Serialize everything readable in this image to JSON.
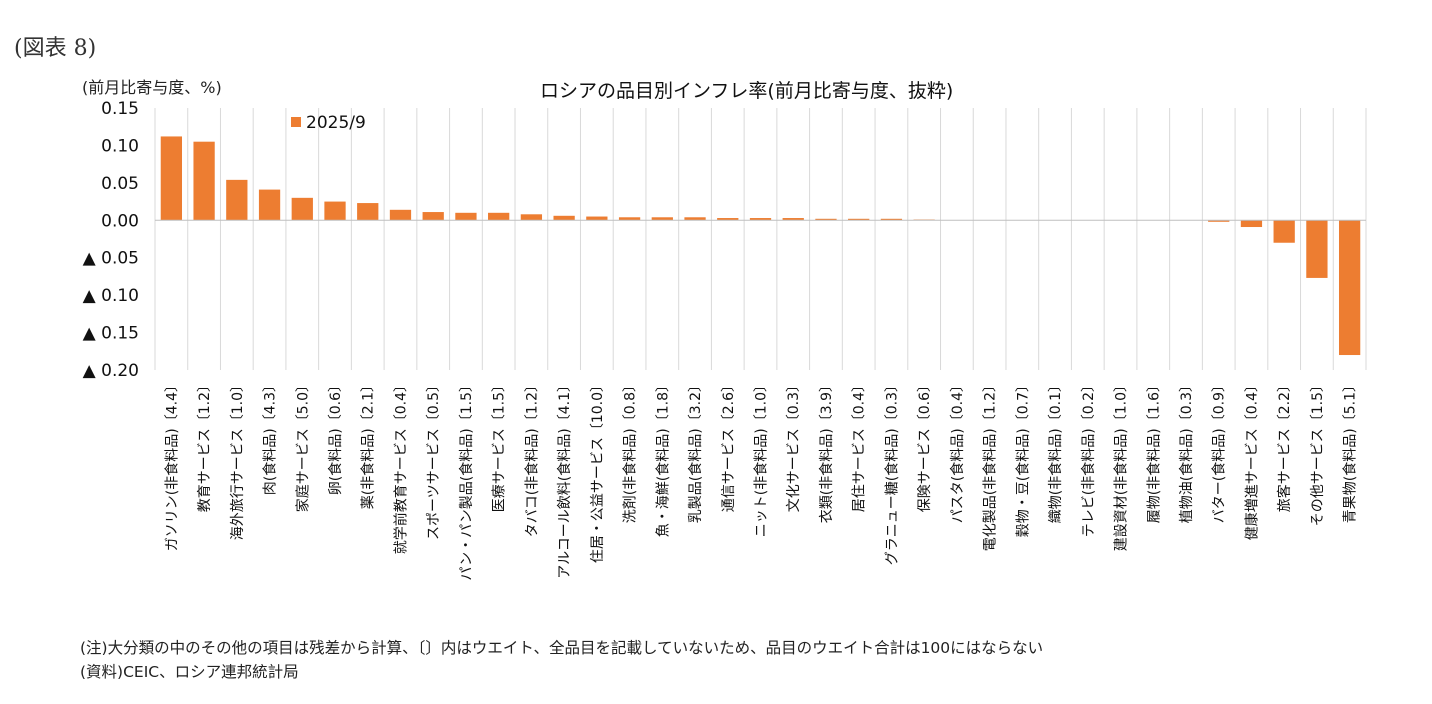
{
  "figure_label": "(図表 8)",
  "unit_label": "(前月比寄与度、%)",
  "notes": {
    "note": "(注)大分類の中のその他の項目は残差から計算、〔〕内はウエイト、全品目を記載していないため、品目のウエイト合計は100にはならない",
    "source": "(資料)CEIC、ロシア連邦統計局"
  },
  "colors": {
    "bar": "#ED7D31",
    "grid": "#d9d9d9",
    "axis": "#bfbfbf"
  },
  "chart_data": {
    "type": "bar",
    "title": "ロシアの品目別インフレ率(前月比寄与度、抜粋)",
    "xlabel": "",
    "ylabel": "(前月比寄与度、%)",
    "ylim": [
      -0.2,
      0.15
    ],
    "yticks": [
      0.15,
      0.1,
      0.05,
      0.0,
      -0.05,
      -0.1,
      -0.15,
      -0.2
    ],
    "ytick_labels": [
      "0.15",
      "0.10",
      "0.05",
      "0.00",
      "▲ 0.05",
      "▲ 0.10",
      "▲ 0.15",
      "▲ 0.20"
    ],
    "grid": "vertical",
    "legend_position": "top-left",
    "categories": [
      "ガソリン(非食料品)〔4.4〕",
      "教育サービス〔1.2〕",
      "海外旅行サービス〔1.0〕",
      "肉(食料品)〔4.3〕",
      "家庭サービス〔5.0〕",
      "卵(食料品)〔0.6〕",
      "薬(非食料品)〔2.1〕",
      "就学前教育サービス〔0.4〕",
      "スポーツサービス〔0.5〕",
      "パン・パン製品(食料品)〔1.5〕",
      "医療サービス〔1.5〕",
      "タバコ(非食料品)〔1.2〕",
      "アルコール飲料(食料品)〔4.1〕",
      "住居・公益サービス〔10.0〕",
      "洗剤(非食料品)〔0.8〕",
      "魚・海鮮(食料品)〔1.8〕",
      "乳製品(食料品)〔3.2〕",
      "通信サービス〔2.6〕",
      "ニット(非食料品)〔1.0〕",
      "文化サービス〔0.3〕",
      "衣類(非食料品)〔3.9〕",
      "居住サービス〔0.4〕",
      "グラニュー糖(食料品)〔0.3〕",
      "保険サービス〔0.6〕",
      "パスタ(食料品)〔0.4〕",
      "電化製品(非食料品)〔1.2〕",
      "穀物・豆(食料品)〔0.7〕",
      "織物(非食料品)〔0.1〕",
      "テレビ(非食料品)〔0.2〕",
      "建設資材(非食料品)〔1.0〕",
      "履物(非食料品)〔1.6〕",
      "植物油(食料品)〔0.3〕",
      "バター(食料品)〔0.9〕",
      "健康増進サービス〔0.4〕",
      "旅客サービス〔2.2〕",
      "その他サービス〔1.5〕",
      "青果物(食料品)〔5.1〕"
    ],
    "series": [
      {
        "name": "2025/9",
        "values": [
          0.112,
          0.105,
          0.054,
          0.041,
          0.03,
          0.025,
          0.023,
          0.014,
          0.011,
          0.01,
          0.01,
          0.008,
          0.006,
          0.005,
          0.004,
          0.004,
          0.004,
          0.003,
          0.003,
          0.003,
          0.002,
          0.002,
          0.002,
          0.001,
          0.0,
          0.0,
          0.0,
          0.0,
          0.0,
          0.0,
          0.0,
          0.0,
          -0.002,
          -0.009,
          -0.03,
          -0.077,
          -0.18
        ]
      }
    ]
  }
}
